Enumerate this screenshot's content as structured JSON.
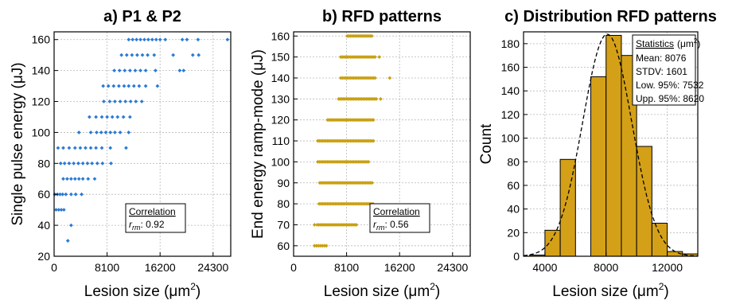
{
  "chart_data": [
    {
      "type": "scatter",
      "title": "a) P1 & P2",
      "xlabel": "Lesion size (μm",
      "xlabel_sup": "2",
      "ylabel": "Single pulse energy (μJ)",
      "xlim": [
        0,
        27000
      ],
      "ylim": [
        20,
        165
      ],
      "xticks": [
        0,
        8100,
        16200,
        24300
      ],
      "yticks": [
        20,
        40,
        60,
        80,
        100,
        120,
        140,
        160
      ],
      "grid": true,
      "color": "#2a7bd6",
      "rows": [
        {
          "y": 30,
          "x": [
            2100
          ]
        },
        {
          "y": 40,
          "x": [
            2600
          ]
        },
        {
          "y": 50,
          "x": [
            300,
            700,
            1100,
            1500
          ]
        },
        {
          "y": 60,
          "x": [
            100,
            500,
            900,
            1300,
            1800,
            2600,
            3300,
            4200
          ]
        },
        {
          "y": 70,
          "x": [
            1400,
            2000,
            2600,
            3200,
            3800,
            4400,
            5200,
            6200
          ]
        },
        {
          "y": 80,
          "x": [
            1000,
            1600,
            2300,
            3000,
            3700,
            4400,
            5100,
            5800,
            6600,
            7400,
            8700
          ]
        },
        {
          "y": 90,
          "x": [
            600,
            1400,
            2300,
            3200,
            4000,
            4800,
            5600,
            6400,
            7300,
            8600,
            11000
          ]
        },
        {
          "y": 100,
          "x": [
            3800,
            5600,
            6500,
            7200,
            7900,
            8600,
            9300,
            10100,
            11400
          ]
        },
        {
          "y": 110,
          "x": [
            5400,
            6400,
            7300,
            8100,
            8900,
            9700,
            10600,
            11600
          ]
        },
        {
          "y": 120,
          "x": [
            7600,
            8500,
            9300,
            10100,
            10900,
            11700,
            12500,
            13400
          ]
        },
        {
          "y": 130,
          "x": [
            7500,
            8300,
            9100,
            9900,
            10700,
            11400,
            12200,
            13000,
            14000,
            15800
          ]
        },
        {
          "y": 140,
          "x": [
            9200,
            10000,
            10800,
            11600,
            12400,
            13200,
            14000,
            15500,
            19200,
            19800
          ]
        },
        {
          "y": 150,
          "x": [
            10300,
            11100,
            11900,
            12700,
            13500,
            14300,
            15300,
            18200,
            21200,
            22100
          ]
        },
        {
          "y": 160,
          "x": [
            11400,
            12000,
            12600,
            13200,
            13800,
            14400,
            15000,
            15600,
            16200,
            17000,
            19600,
            20300,
            22000,
            26500
          ]
        }
      ],
      "legend_box": {
        "heading": "Correlation",
        "r_main": "r",
        "r_sub": "rm",
        "text": ": 0.92"
      }
    },
    {
      "type": "scatter",
      "title": "b) RFD patterns",
      "xlabel": "Lesion size (μm",
      "xlabel_sup": "2",
      "ylabel": "End energy ramp-mode (μJ)",
      "xlim": [
        0,
        27000
      ],
      "ylim": [
        55,
        162
      ],
      "xticks": [
        0,
        8100,
        16200,
        24300
      ],
      "yticks": [
        60,
        70,
        80,
        90,
        100,
        110,
        120,
        130,
        140,
        150,
        160
      ],
      "grid": true,
      "color": "#c8a010",
      "rows": [
        {
          "y": 60,
          "min": 3200,
          "max": 5100,
          "step": 300
        },
        {
          "y": 70,
          "min": 3600,
          "max": 9700,
          "step": 250
        },
        {
          "y": 80,
          "min": 3900,
          "max": 12300,
          "step": 250
        },
        {
          "y": 90,
          "min": 4000,
          "max": 12200,
          "step": 250
        },
        {
          "y": 100,
          "min": 3700,
          "max": 11600,
          "step": 250
        },
        {
          "y": 110,
          "min": 3700,
          "max": 12400,
          "step": 250
        },
        {
          "y": 120,
          "min": 5200,
          "max": 12400,
          "step": 250
        },
        {
          "y": 130,
          "min": 6900,
          "max": 12700,
          "step": 250
        },
        {
          "y": 140,
          "min": 7200,
          "max": 12600,
          "step": 250
        },
        {
          "y": 150,
          "min": 7200,
          "max": 12600,
          "step": 250
        },
        {
          "y": 160,
          "min": 8200,
          "max": 12100,
          "step": 250
        }
      ],
      "extra": [
        {
          "x": 3200,
          "y": 70
        },
        {
          "x": 14700,
          "y": 140
        },
        {
          "x": 13300,
          "y": 130
        },
        {
          "x": 13100,
          "y": 150
        }
      ],
      "legend_box": {
        "heading": "Correlation",
        "r_main": "r",
        "r_sub": "rm",
        "text": ": 0.56"
      }
    },
    {
      "type": "bar",
      "title": "c) Distribution RFD patterns",
      "xlabel": "Lesion size (μm",
      "xlabel_sup": "2",
      "ylabel": "Count",
      "xlim": [
        2600,
        14000
      ],
      "ylim": [
        0,
        190
      ],
      "xticks": [
        4000,
        8000,
        12000
      ],
      "yticks": [
        0,
        20,
        40,
        60,
        80,
        100,
        120,
        140,
        160,
        180
      ],
      "grid": true,
      "bin_width": 1000,
      "bins": [
        {
          "center": 3500,
          "value": 1
        },
        {
          "center": 4500,
          "value": 22
        },
        {
          "center": 5500,
          "value": 82
        },
        {
          "center": 6500,
          "value": 0
        },
        {
          "center": 7500,
          "value": 152
        },
        {
          "center": 8500,
          "value": 187
        },
        {
          "center": 9500,
          "value": 170
        },
        {
          "center": 10500,
          "value": 93
        },
        {
          "center": 11500,
          "value": 28
        },
        {
          "center": 12500,
          "value": 4
        },
        {
          "center": 13500,
          "value": 2
        }
      ],
      "fit": {
        "mean": 8076,
        "sd": 1601,
        "peak": 188
      },
      "bar_color": "#d4a017",
      "stats_box": {
        "heading": "Statistics",
        "unit": "(μm",
        "unit_sup": "2",
        "unit_close": ")",
        "lines": [
          "Mean: 8076",
          "STDV: 1601",
          "Low. 95%: 7532",
          "Upp. 95%: 8620"
        ]
      }
    }
  ]
}
